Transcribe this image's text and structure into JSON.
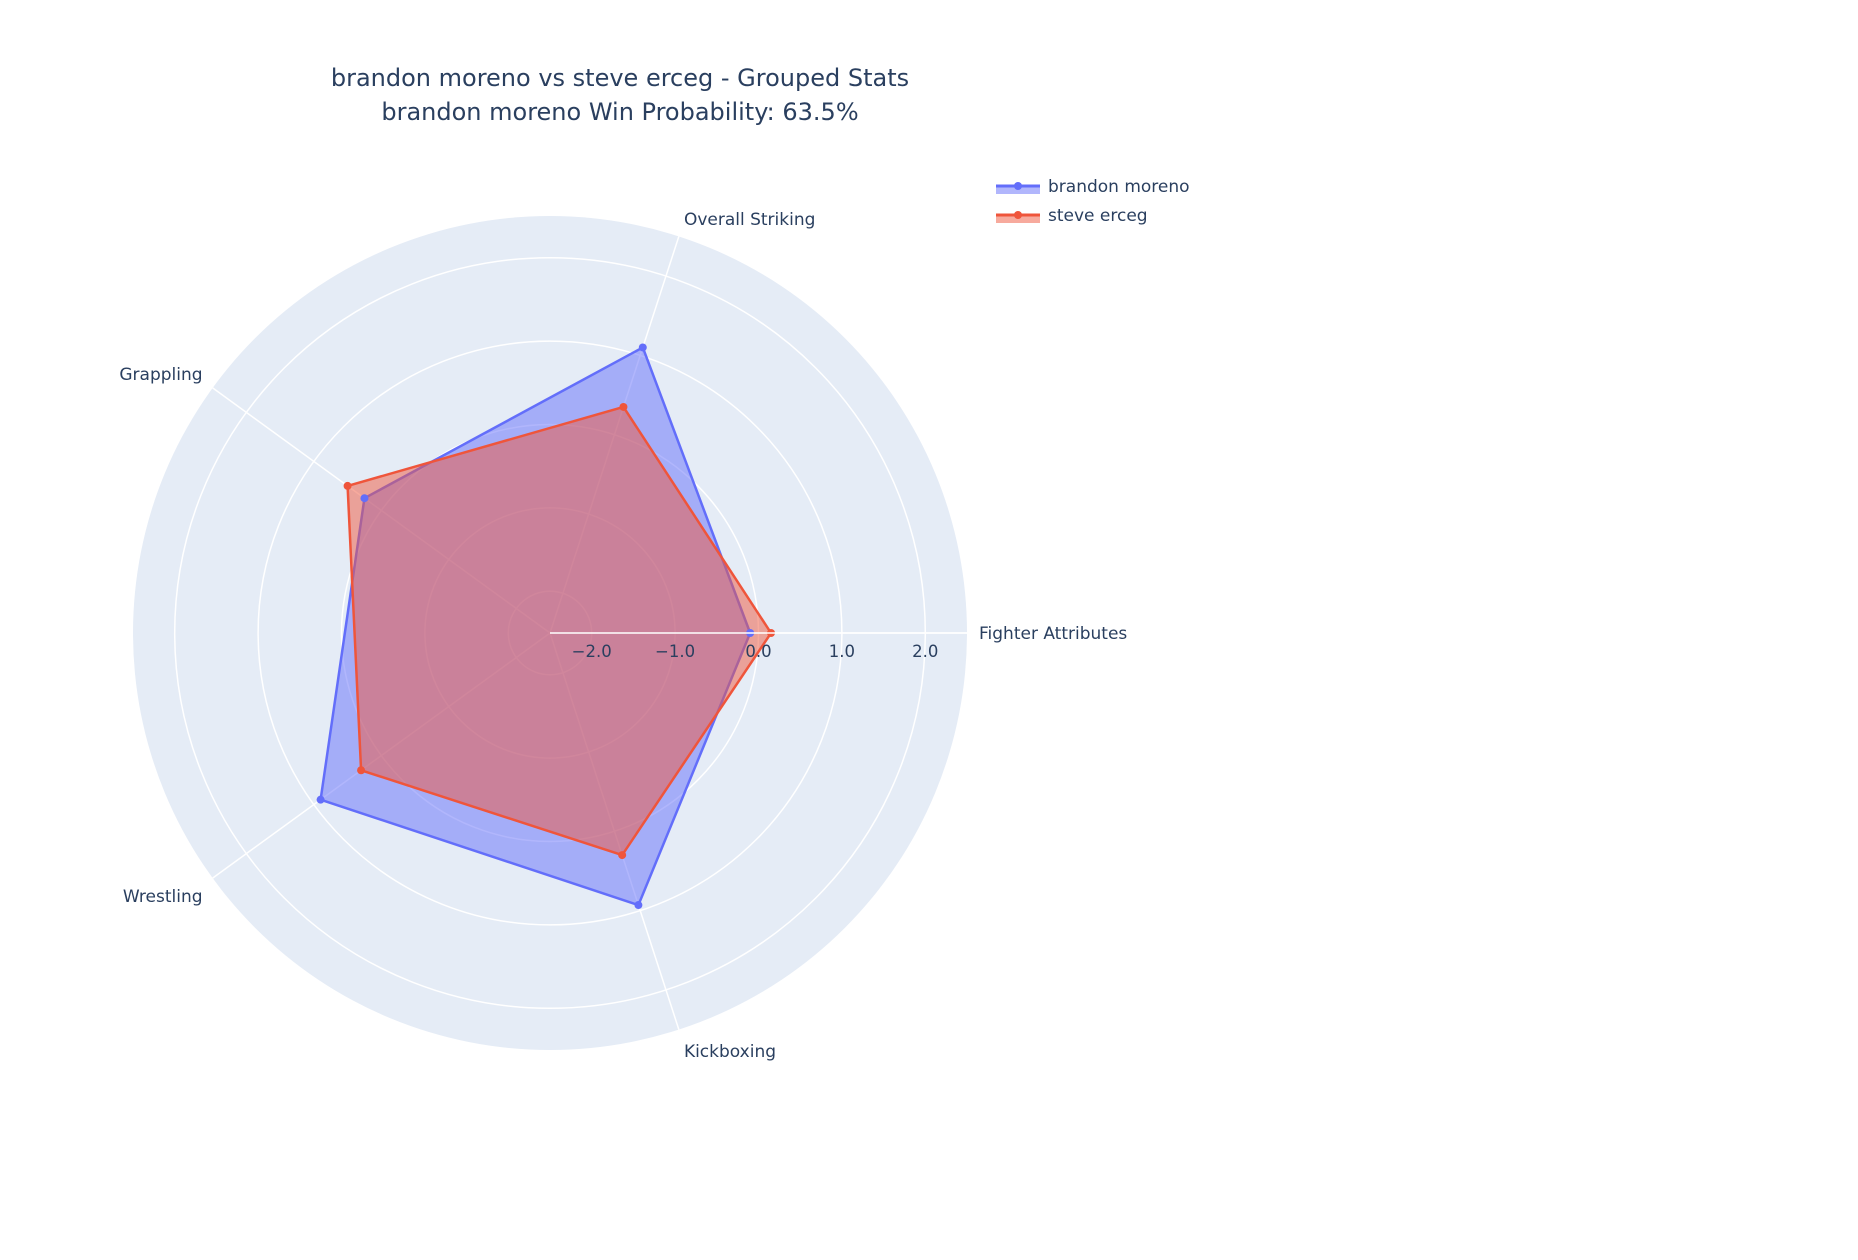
{
  "chart_data": {
    "type": "radar",
    "title": "brandon moreno vs steve erceg - Grouped Stats",
    "subtitle": "brandon moreno Win Probability: 63.5%",
    "categories": [
      "Fighter Attributes",
      "Overall Striking",
      "Grappling",
      "Wrestling",
      "Kickboxing"
    ],
    "radial_range": [
      -2.5,
      2.5
    ],
    "radial_ticks": [
      -2.0,
      -1.0,
      0.0,
      1.0,
      2.0
    ],
    "radial_tick_labels": [
      "−2.0",
      "−1.0",
      "0.0",
      "1.0",
      "2.0"
    ],
    "grid": true,
    "legend_position": "top-right",
    "background_color": "#e5ecf6",
    "series": [
      {
        "name": "brandon moreno",
        "color": "#636efa",
        "fill_color": "rgba(99,110,250,0.5)",
        "values": [
          -0.1,
          1.1,
          0.25,
          0.9,
          0.93
        ]
      },
      {
        "name": "steve erceg",
        "color": "#ef553b",
        "fill_color": "rgba(239,85,59,0.5)",
        "values": [
          0.15,
          0.35,
          0.5,
          0.3,
          0.3
        ]
      }
    ]
  }
}
